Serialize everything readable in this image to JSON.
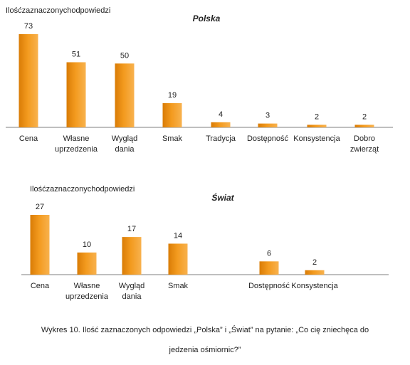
{
  "colors": {
    "bar": "#f39a1e",
    "bar_dark": "#d97c06",
    "bar_light": "#f8b24e",
    "axis": "#7f7f7f",
    "text": "#222222"
  },
  "chart_data": [
    {
      "type": "bar",
      "title": "Polska",
      "ylabel": "Ilośćzaznaczonychodpowiedzi",
      "xlabel": "",
      "grid": false,
      "categories": [
        "Cena",
        "Własne uprzedzenia",
        "Wygląd dania",
        "Smak",
        "Tradycja",
        "Dostępność",
        "Konsystencja",
        "Dobro zwierząt"
      ],
      "values": [
        73,
        51,
        50,
        19,
        4,
        3,
        2,
        2
      ],
      "ylim": [
        0,
        73
      ]
    },
    {
      "type": "bar",
      "title": "Świat",
      "ylabel": "Ilośćzaznaczonychodpowiedzi",
      "xlabel": "",
      "grid": false,
      "categories": [
        "Cena",
        "Własne uprzedzenia",
        "Wygląd dania",
        "Smak",
        "",
        "Dostępność",
        "Konsystencja"
      ],
      "values": [
        27,
        10,
        17,
        14,
        null,
        6,
        2
      ],
      "ylim": [
        0,
        27
      ]
    }
  ],
  "caption": {
    "line1": "Wykres 10. Ilość zaznaczonych odpowiedzi „Polska” i „Świat” na pytanie: „Co cię zniechęca do",
    "line2": "jedzenia ośmiornic?”"
  }
}
